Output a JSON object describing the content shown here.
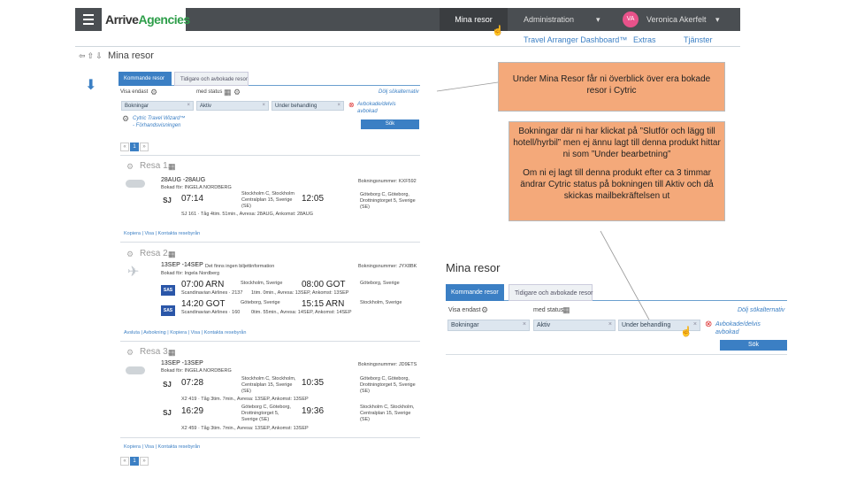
{
  "topbar": {
    "logo_main": "Arrive",
    "logo_accent": "Agencies",
    "nav_mina_resor": "Mina resor",
    "nav_administration": "Administration",
    "avatar_initials": "VA",
    "user_name": "Veronica Akerfelt",
    "sub_dashboard": "Travel Arranger Dashboard™",
    "sub_extras": "Extras",
    "sub_tjanster": "Tjänster"
  },
  "page": {
    "title": "Mina resor"
  },
  "tabs": {
    "kommande": "Kommande resor",
    "tidigare": "Tidigare och avbokade resor"
  },
  "filters": {
    "visa_endast": "Visa endast",
    "med_status": "med status",
    "chip_bokningar": "Bokningar",
    "chip_aktiv": "Aktiv",
    "chip_under": "Under behandling",
    "avbokade": "Avbokade/delvis avbokad",
    "dolj": "Dölj sökalternativ",
    "sok": "Sök",
    "wizard_link": "Cytric Travel Wizard™ - Förhandsvisningen"
  },
  "pagination": {
    "prev": "«",
    "page": "1",
    "next": "»"
  },
  "trips": [
    {
      "heading": "Resa 1.",
      "dates": "28AUG  -28AUG",
      "booked_for": "Bokad för: INGELA NORDBERG",
      "dep_time": "07:14",
      "from": "Stockholm C, Stockholm Centralplan 15, Sverige (SE)",
      "arr_time": "12:05",
      "to": "Göteborg C, Göteborg, Drottningtorget 5, Sverige (SE)",
      "detail": "SJ 161 · Tåg   4tim. 51min., Avresa: 28AUG, Ankomst: 28AUG",
      "booking_no": "Bokningsnummer: KXF592",
      "actions": "Kopiera  |  Visa  |  Kontakta resebyrån"
    },
    {
      "heading": "Resa 2.",
      "dates": "13SEP  -14SEP",
      "note": "Det finns ingen biljettinformation",
      "booked_for": "Bokad för: Ingela Nordberg",
      "dep_time1": "07:00 ARN",
      "carrier1": "Scandinavian Airlines · 2137",
      "from1": "Stockholm, Sverige",
      "detail1": "1tim. 0min., Avresa: 13SEP, Ankomst: 13SEP",
      "arr_time1": "08:00 GOT",
      "to1": "Göteborg, Sverige",
      "dep_time2": "14:20 GOT",
      "carrier2": "Scandinavian Airlines · 160",
      "from2": "Göteborg, Sverige",
      "detail2": "0tim. 55min., Avresa: 14SEP, Ankomst: 14SEP",
      "arr_time2": "15:15 ARN",
      "to2": "Stockholm, Sverige",
      "booking_no": "Bokningsnummer: JYX8BK",
      "actions": "Avsluta  |  Avbokning  |  Kopiera  |  Visa  |  Kontakta resebyrån"
    },
    {
      "heading": "Resa 3.",
      "dates": "13SEP  -13SEP",
      "booked_for": "Bokad för: INGELA NORDBERG",
      "dep_time1": "07:28",
      "from1": "Stockholm C, Stockholm, Centralplan 15, Sverige (SE)",
      "arr_time1": "10:35",
      "to1": "Göteborg C, Göteborg, Drottningtorget 5, Sverige (SE)",
      "detail1": "X2 419 · Tåg   3tim. 7min., Avresa: 13SEP, Ankomst: 13SEP",
      "dep_time2": "16:29",
      "from2": "Göteborg C, Göteborg, Drottningtorget 5, Sverige (SE)",
      "arr_time2": "19:36",
      "to2": "Stockholm C, Stockholm, Centralplan 15, Sverige (SE)",
      "detail2": "X2 459 · Tåg   3tim. 7min., Avresa: 13SEP, Ankomst: 13SEP",
      "booking_no": "Bokningsnummer: JD9ETS",
      "actions": "Kopiera  |  Visa  |  Kontakta resebyrån"
    }
  ],
  "callouts": {
    "c1": "Under Mina Resor får ni överblick över era bokade resor i Cytric",
    "c2a": "Bokningar där ni har klickat på ”Slutför och lägg till hotell/hyrbil” men ej ännu lagt till denna produkt hittar ni som ”Under bearbetning”",
    "c2b": "Om ni ej lagt till denna produkt efter ca 3 timmar ändrar Cytric status på bokningen till Aktiv och då skickas mailbekräftelsen ut"
  },
  "zoom": {
    "title": "Mina resor",
    "tab_kommande": "Kommande resor",
    "tab_tidigare": "Tidigare och avbokade resor",
    "visa_endast": "Visa endast",
    "med_status": "med status",
    "chip_bokningar": "Bokningar",
    "chip_aktiv": "Aktiv",
    "chip_under": "Under behandling",
    "avbokade": "Avbokade/delvis avbokad",
    "dolj": "Dölj sökalternativ",
    "sok": "Sök"
  }
}
